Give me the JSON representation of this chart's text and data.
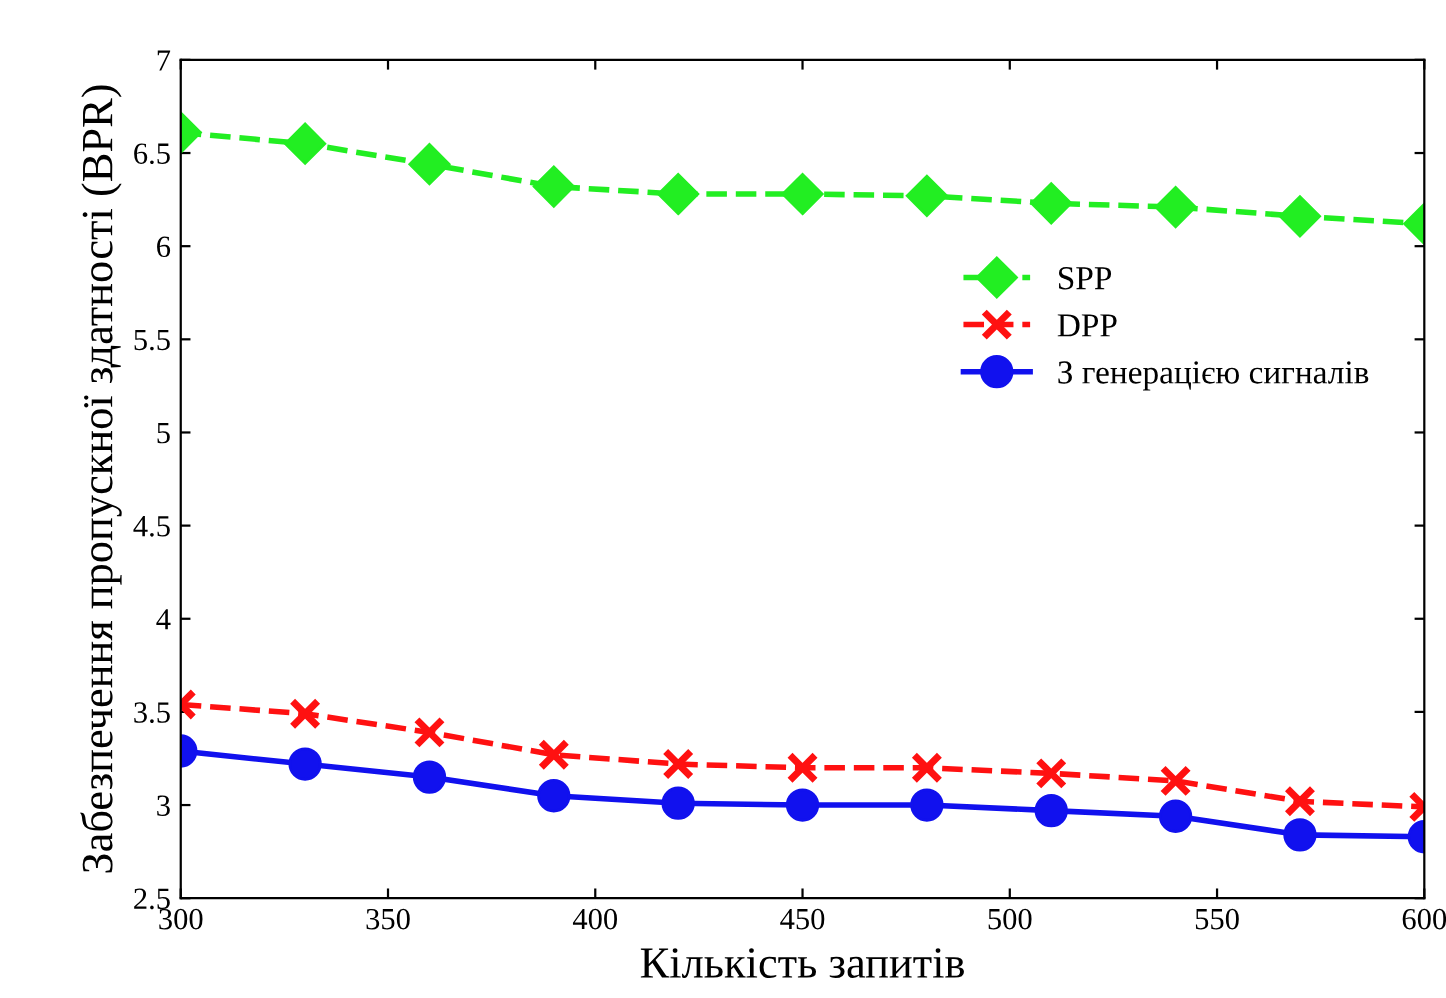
{
  "chart_data": {
    "type": "line",
    "xlabel": "Кількість запитів",
    "ylabel": "Забезпечення пропускної здатності (BPR)",
    "x": [
      300,
      330,
      360,
      390,
      420,
      450,
      480,
      510,
      540,
      570,
      600
    ],
    "xlim": [
      300,
      600
    ],
    "xticks": [
      300,
      350,
      400,
      450,
      500,
      550,
      600
    ],
    "ylim": [
      2.5,
      7
    ],
    "yticks": [
      2.5,
      3,
      3.5,
      4,
      4.5,
      5,
      5.5,
      6,
      6.5,
      7
    ],
    "grid": false,
    "legend": "right",
    "series": [
      {
        "name": "SPP",
        "color": "#22ee22",
        "marker": "diamond",
        "line_style": "dashed",
        "values": [
          6.61,
          6.55,
          6.44,
          6.32,
          6.28,
          6.28,
          6.27,
          6.23,
          6.21,
          6.16,
          6.12
        ]
      },
      {
        "name": "DPP",
        "color": "#ff1111",
        "marker": "cross",
        "line_style": "dashed",
        "values": [
          3.54,
          3.49,
          3.39,
          3.27,
          3.22,
          3.2,
          3.2,
          3.17,
          3.13,
          3.02,
          2.99
        ]
      },
      {
        "name": "З генерацією сигналів",
        "color": "#1111ee",
        "marker": "circle",
        "line_style": "solid",
        "values": [
          3.29,
          3.22,
          3.15,
          3.05,
          3.01,
          3.0,
          3.0,
          2.97,
          2.94,
          2.84,
          2.83
        ]
      }
    ]
  }
}
